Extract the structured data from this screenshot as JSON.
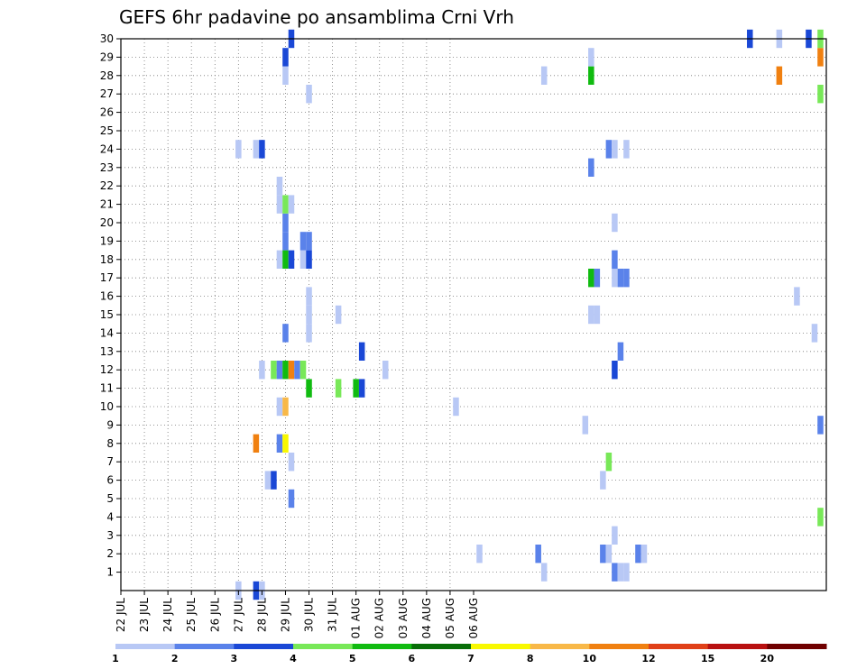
{
  "chart_data": {
    "type": "heatmap",
    "title": "GEFS 6hr padavine po ansamblima Crni Vrh",
    "xlabel": "",
    "ylabel": "",
    "x_ticks": [
      "22 JUL",
      "23 JUL",
      "24 JUL",
      "25 JUL",
      "26 JUL",
      "27 JUL",
      "28 JUL",
      "29 JUL",
      "30 JUL",
      "31 JUL",
      "01 AUG",
      "02 AUG",
      "03 AUG",
      "04 AUG",
      "05 AUG",
      "06 AUG"
    ],
    "y_ticks": [
      "1",
      "2",
      "3",
      "4",
      "5",
      "6",
      "7",
      "8",
      "9",
      "10",
      "11",
      "12",
      "13",
      "14",
      "15",
      "16",
      "17",
      "18",
      "19",
      "20",
      "21",
      "22",
      "23",
      "24",
      "25",
      "26",
      "27",
      "28",
      "29",
      "30"
    ],
    "time_step_hours": 6,
    "time_range": [
      "22 JUL 00Z",
      "06 AUG 00Z"
    ],
    "member_range": [
      0,
      30
    ],
    "grid": true,
    "legend_placement": "bottom",
    "legend": {
      "labels": [
        "1",
        "2",
        "3",
        "4",
        "5",
        "6",
        "7",
        "8",
        "10",
        "12",
        "15",
        "20"
      ],
      "colors": [
        "#b8c8f5",
        "#5a82ea",
        "#1a48d6",
        "#78e858",
        "#10bb10",
        "#086e08",
        "#f8f800",
        "#f8b848",
        "#f08010",
        "#e04018",
        "#b81010",
        "#700000"
      ]
    },
    "cells": [
      {
        "m": 0,
        "t": 20,
        "c": "#b8c8f5"
      },
      {
        "m": 0,
        "t": 23,
        "c": "#1a48d6"
      },
      {
        "m": 0,
        "t": 24,
        "c": "#b8c8f5"
      },
      {
        "m": 1,
        "t": 72,
        "c": "#b8c8f5"
      },
      {
        "m": 1,
        "t": 84,
        "c": "#5a82ea"
      },
      {
        "m": 1,
        "t": 85,
        "c": "#b8c8f5"
      },
      {
        "m": 1,
        "t": 86,
        "c": "#b8c8f5"
      },
      {
        "m": 2,
        "t": 82,
        "c": "#5a82ea"
      },
      {
        "m": 2,
        "t": 83,
        "c": "#b8c8f5"
      },
      {
        "m": 2,
        "t": 88,
        "c": "#5a82ea"
      },
      {
        "m": 2,
        "t": 89,
        "c": "#b8c8f5"
      },
      {
        "m": 2,
        "t": 71,
        "c": "#5a82ea"
      },
      {
        "m": 2,
        "t": 61,
        "c": "#b8c8f5"
      },
      {
        "m": 3,
        "t": 84,
        "c": "#b8c8f5"
      },
      {
        "m": 4,
        "t": 119,
        "c": "#78e858"
      },
      {
        "m": 5,
        "t": 29,
        "c": "#5a82ea"
      },
      {
        "m": 6,
        "t": 25,
        "c": "#b8c8f5"
      },
      {
        "m": 6,
        "t": 26,
        "c": "#1a48d6"
      },
      {
        "m": 6,
        "t": 82,
        "c": "#b8c8f5"
      },
      {
        "m": 7,
        "t": 29,
        "c": "#b8c8f5"
      },
      {
        "m": 7,
        "t": 83,
        "c": "#78e858"
      },
      {
        "m": 8,
        "t": 23,
        "c": "#f08010"
      },
      {
        "m": 8,
        "t": 27,
        "c": "#5a82ea"
      },
      {
        "m": 8,
        "t": 28,
        "c": "#f8f800"
      },
      {
        "m": 9,
        "t": 79,
        "c": "#b8c8f5"
      },
      {
        "m": 9,
        "t": 119,
        "c": "#5a82ea"
      },
      {
        "m": 10,
        "t": 27,
        "c": "#b8c8f5"
      },
      {
        "m": 10,
        "t": 28,
        "c": "#f8b848"
      },
      {
        "m": 10,
        "t": 57,
        "c": "#b8c8f5"
      },
      {
        "m": 11,
        "t": 32,
        "c": "#10bb10"
      },
      {
        "m": 11,
        "t": 37,
        "c": "#78e858"
      },
      {
        "m": 11,
        "t": 40,
        "c": "#10bb10"
      },
      {
        "m": 11,
        "t": 41,
        "c": "#1a48d6"
      },
      {
        "m": 12,
        "t": 24,
        "c": "#b8c8f5"
      },
      {
        "m": 12,
        "t": 26,
        "c": "#78e858"
      },
      {
        "m": 12,
        "t": 27,
        "c": "#5a82ea"
      },
      {
        "m": 12,
        "t": 28,
        "c": "#10bb10"
      },
      {
        "m": 12,
        "t": 29,
        "c": "#f08010"
      },
      {
        "m": 12,
        "t": 30,
        "c": "#5a82ea"
      },
      {
        "m": 12,
        "t": 31,
        "c": "#78e858"
      },
      {
        "m": 12,
        "t": 45,
        "c": "#b8c8f5"
      },
      {
        "m": 12,
        "t": 84,
        "c": "#1a48d6"
      },
      {
        "m": 13,
        "t": 41,
        "c": "#1a48d6"
      },
      {
        "m": 13,
        "t": 85,
        "c": "#5a82ea"
      },
      {
        "m": 14,
        "t": 28,
        "c": "#5a82ea"
      },
      {
        "m": 14,
        "t": 32,
        "c": "#b8c8f5"
      },
      {
        "m": 14,
        "t": 118,
        "c": "#b8c8f5"
      },
      {
        "m": 15,
        "t": 32,
        "c": "#b8c8f5"
      },
      {
        "m": 15,
        "t": 37,
        "c": "#b8c8f5"
      },
      {
        "m": 15,
        "t": 80,
        "c": "#b8c8f5"
      },
      {
        "m": 15,
        "t": 81,
        "c": "#b8c8f5"
      },
      {
        "m": 16,
        "t": 32,
        "c": "#b8c8f5"
      },
      {
        "m": 16,
        "t": 115,
        "c": "#b8c8f5"
      },
      {
        "m": 17,
        "t": 80,
        "c": "#10bb10"
      },
      {
        "m": 17,
        "t": 81,
        "c": "#5a82ea"
      },
      {
        "m": 17,
        "t": 84,
        "c": "#b8c8f5"
      },
      {
        "m": 17,
        "t": 85,
        "c": "#5a82ea"
      },
      {
        "m": 17,
        "t": 86,
        "c": "#5a82ea"
      },
      {
        "m": 18,
        "t": 27,
        "c": "#b8c8f5"
      },
      {
        "m": 18,
        "t": 28,
        "c": "#10bb10"
      },
      {
        "m": 18,
        "t": 29,
        "c": "#1a48d6"
      },
      {
        "m": 18,
        "t": 31,
        "c": "#b8c8f5"
      },
      {
        "m": 18,
        "t": 32,
        "c": "#1a48d6"
      },
      {
        "m": 18,
        "t": 84,
        "c": "#5a82ea"
      },
      {
        "m": 19,
        "t": 28,
        "c": "#5a82ea"
      },
      {
        "m": 19,
        "t": 31,
        "c": "#5a82ea"
      },
      {
        "m": 19,
        "t": 32,
        "c": "#5a82ea"
      },
      {
        "m": 20,
        "t": 28,
        "c": "#5a82ea"
      },
      {
        "m": 20,
        "t": 84,
        "c": "#b8c8f5"
      },
      {
        "m": 21,
        "t": 27,
        "c": "#b8c8f5"
      },
      {
        "m": 21,
        "t": 28,
        "c": "#78e858"
      },
      {
        "m": 21,
        "t": 29,
        "c": "#b8c8f5"
      },
      {
        "m": 22,
        "t": 27,
        "c": "#b8c8f5"
      },
      {
        "m": 23,
        "t": 80,
        "c": "#5a82ea"
      },
      {
        "m": 24,
        "t": 20,
        "c": "#b8c8f5"
      },
      {
        "m": 24,
        "t": 23,
        "c": "#b8c8f5"
      },
      {
        "m": 24,
        "t": 24,
        "c": "#1a48d6"
      },
      {
        "m": 24,
        "t": 83,
        "c": "#5a82ea"
      },
      {
        "m": 24,
        "t": 84,
        "c": "#b8c8f5"
      },
      {
        "m": 24,
        "t": 86,
        "c": "#b8c8f5"
      },
      {
        "m": 27,
        "t": 32,
        "c": "#b8c8f5"
      },
      {
        "m": 27,
        "t": 119,
        "c": "#78e858"
      },
      {
        "m": 28,
        "t": 28,
        "c": "#b8c8f5"
      },
      {
        "m": 28,
        "t": 72,
        "c": "#b8c8f5"
      },
      {
        "m": 28,
        "t": 80,
        "c": "#10bb10"
      },
      {
        "m": 28,
        "t": 112,
        "c": "#f08010"
      },
      {
        "m": 29,
        "t": 28,
        "c": "#1a48d6"
      },
      {
        "m": 29,
        "t": 80,
        "c": "#b8c8f5"
      },
      {
        "m": 29,
        "t": 119,
        "c": "#f08010"
      },
      {
        "m": 30,
        "t": 29,
        "c": "#1a48d6"
      },
      {
        "m": 30,
        "t": 107,
        "c": "#1a48d6"
      },
      {
        "m": 30,
        "t": 112,
        "c": "#b8c8f5"
      },
      {
        "m": 30,
        "t": 117,
        "c": "#1a48d6"
      },
      {
        "m": 30,
        "t": 119,
        "c": "#78e858"
      }
    ]
  }
}
